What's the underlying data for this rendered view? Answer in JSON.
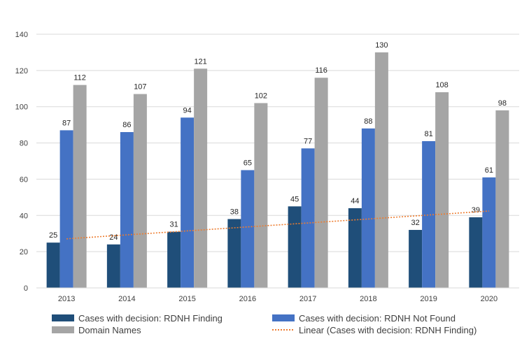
{
  "chart_data": {
    "type": "bar",
    "categories": [
      "2013",
      "2014",
      "2015",
      "2016",
      "2017",
      "2018",
      "2019",
      "2020"
    ],
    "series": [
      {
        "name": "Cases with decision: RDNH Finding",
        "values": [
          25,
          24,
          31,
          38,
          45,
          44,
          32,
          39
        ],
        "color": "#1f4e79"
      },
      {
        "name": "Cases with decision: RDNH Not Found",
        "values": [
          87,
          86,
          94,
          65,
          77,
          88,
          81,
          61
        ],
        "color": "#4472c4"
      },
      {
        "name": "Domain Names",
        "values": [
          112,
          107,
          121,
          102,
          116,
          130,
          108,
          98
        ],
        "color": "#a5a5a5"
      }
    ],
    "trendline": {
      "name": "Linear (Cases with decision: RDNH Finding)",
      "series": 0,
      "type": "linear",
      "color": "#ed7d31"
    },
    "ylim": [
      0,
      140
    ],
    "yticks": [
      0,
      20,
      40,
      60,
      80,
      100,
      120,
      140
    ],
    "grid": true,
    "legend_position": "bottom"
  }
}
